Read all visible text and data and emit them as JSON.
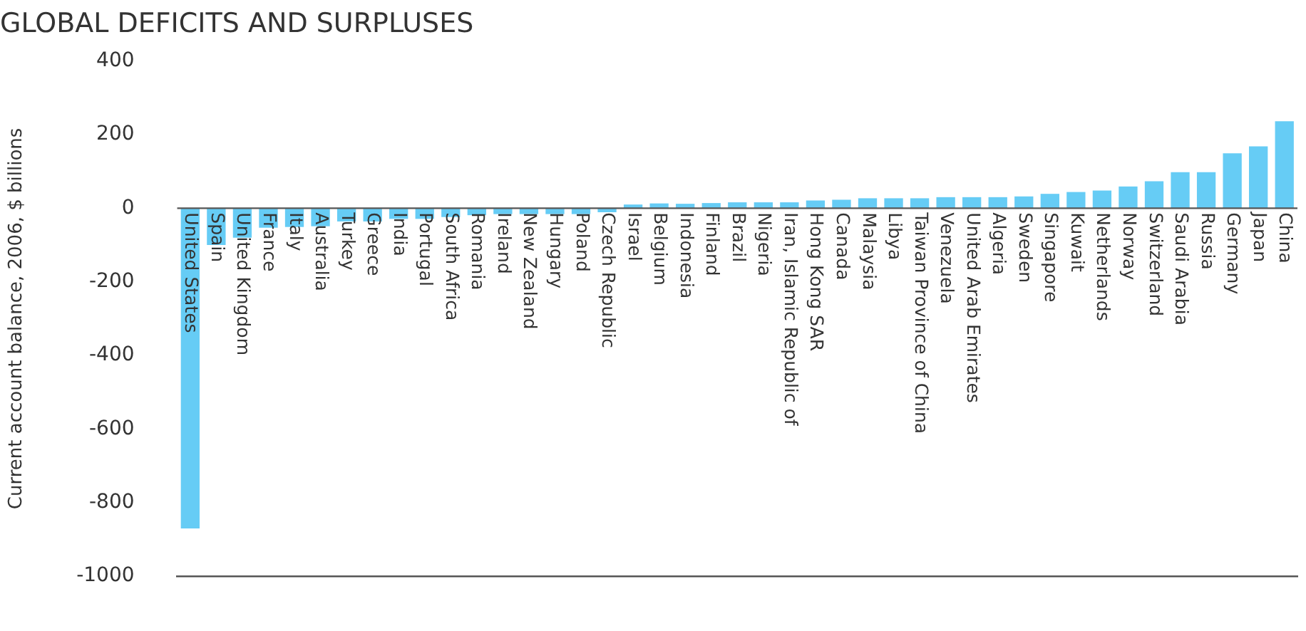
{
  "chart_data": {
    "type": "bar",
    "title": "GLOBAL DEFICITS AND SURPLUSES",
    "ylabel": "Current account balance, 2006, $ billions",
    "categories": [
      "United States",
      "Spain",
      "United Kingdom",
      "France",
      "Italy",
      "Australia",
      "Turkey",
      "Greece",
      "India",
      "Portugal",
      "South Africa",
      "Romania",
      "Ireland",
      "New Zealand",
      "Hungary",
      "Poland",
      "Czech Republic",
      "Israel",
      "Belgium",
      "Indonesia",
      "Finland",
      "Brazil",
      "Nigeria",
      "Iran, Islamic Republic of",
      "Hong Kong SAR",
      "Canada",
      "Malaysia",
      "Libya",
      "Taiwan Province of China",
      "Venezuela",
      "United Arab Emirates",
      "Algeria",
      "Sweden",
      "Singapore",
      "Kuwait",
      "Netherlands",
      "Norway",
      "Switzerland",
      "Saudi Arabia",
      "Russia",
      "Germany",
      "Japan",
      "China"
    ],
    "values": [
      -870,
      -100,
      -80,
      -53,
      -51,
      -49,
      -36,
      -36,
      -29,
      -29,
      -24,
      -19,
      -16,
      -16,
      -16,
      -16,
      -11,
      10,
      13,
      12,
      14,
      16,
      16,
      16,
      21,
      23,
      27,
      27,
      27,
      30,
      30,
      30,
      32,
      39,
      44,
      48,
      59,
      73,
      98,
      98,
      149,
      168,
      236
    ],
    "color": "#66ccf5",
    "ylim": [
      -1000,
      400
    ],
    "yticks": [
      -1000,
      -800,
      -600,
      -400,
      -200,
      0,
      200,
      400
    ],
    "grid": false,
    "legend": false
  }
}
